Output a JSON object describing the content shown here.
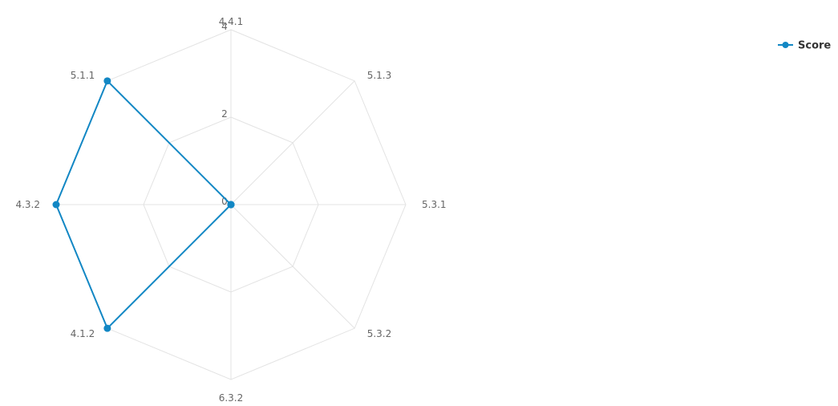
{
  "chart_data": {
    "type": "radar",
    "categories": [
      "4.4.1",
      "5.1.3",
      "5.3.1",
      "5.3.2",
      "6.3.2",
      "4.1.2",
      "4.3.2",
      "5.1.1"
    ],
    "series": [
      {
        "name": "Score",
        "values": [
          0,
          0,
          0,
          0,
          0,
          4,
          4,
          4
        ],
        "color": "#1287c4"
      }
    ],
    "radial_ticks": [
      "0",
      "2",
      "4"
    ],
    "tick_values": [
      0,
      2,
      4
    ],
    "rmax": 4,
    "grid": true,
    "grid_shape": "polygon",
    "legend_position": "top-right"
  }
}
